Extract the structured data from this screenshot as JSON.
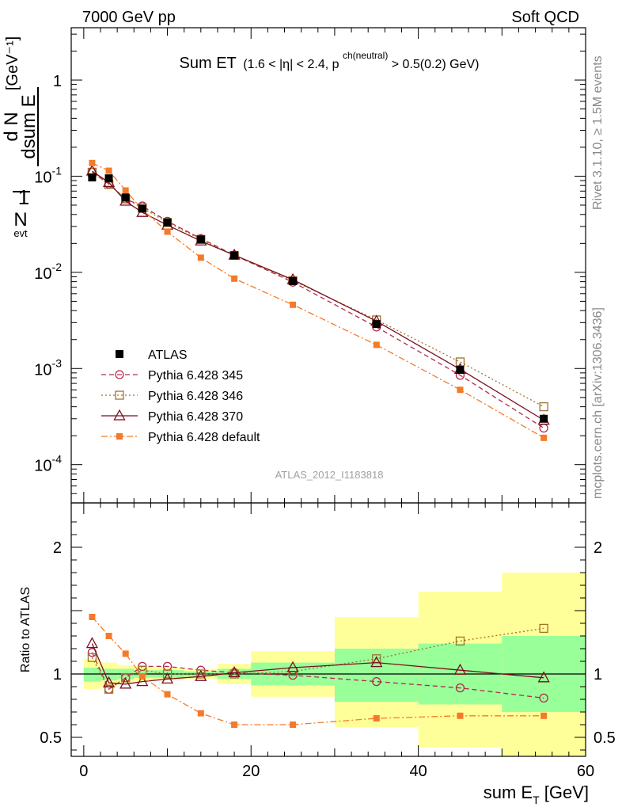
{
  "header": {
    "left": "7000 GeV pp",
    "right": "Soft QCD"
  },
  "side_labels": {
    "rivet": "Rivet 3.1.10, ≥ 1.5M events",
    "mcplots": "mcplots.cern.ch [arXiv:1306.3436]"
  },
  "chart_data": [
    {
      "type": "line",
      "panel": "main",
      "title_main": "Sum ET",
      "title_sub": "(1.6 < |η| < 2.4, p",
      "title_sup": "ch(neutral)",
      "title_end": " > 0.5(0.2) GeV)",
      "analysis_label": "ATLAS_2012_I1183818",
      "ylabel": "1/N_evt dN_evt/dsum E_T [GeV^-1]",
      "yscale": "log",
      "ylim": [
        4e-05,
        3.5
      ],
      "xlim": [
        -1.5,
        60
      ],
      "ytick_labels": [
        "1",
        "10^-1",
        "10^-2",
        "10^-3",
        "10^-4"
      ],
      "legend_position": "lower-left",
      "x": [
        1,
        3,
        5,
        7,
        10,
        14,
        18,
        25,
        35,
        45,
        55
      ],
      "series": [
        {
          "name": "ATLAS",
          "color": "#000000",
          "marker": "filled-square",
          "line": "none",
          "values": [
            0.097,
            0.095,
            0.06,
            0.046,
            0.033,
            0.022,
            0.015,
            0.0081,
            0.0029,
            0.00097,
            0.0003
          ]
        },
        {
          "name": "Pythia 6.428 345",
          "color": "#b2294d",
          "marker": "open-circle",
          "line": "dashed",
          "values": [
            0.11,
            0.083,
            0.058,
            0.049,
            0.034,
            0.0225,
            0.0151,
            0.0079,
            0.0027,
            0.00085,
            0.00024
          ]
        },
        {
          "name": "Pythia 6.428 346",
          "color": "#a0722a",
          "marker": "open-square",
          "line": "dotted",
          "values": [
            0.11,
            0.082,
            0.058,
            0.047,
            0.033,
            0.022,
            0.015,
            0.0082,
            0.0032,
            0.00117,
            0.0004
          ]
        },
        {
          "name": "Pythia 6.428 370",
          "color": "#7a0f1e",
          "marker": "open-triangle",
          "line": "solid",
          "values": [
            0.113,
            0.086,
            0.055,
            0.042,
            0.031,
            0.0212,
            0.0151,
            0.0084,
            0.0031,
            0.00098,
            0.00029
          ]
        },
        {
          "name": "Pythia 6.428 default",
          "color": "#f47a2a",
          "marker": "filled-square-small",
          "line": "dashdot",
          "values": [
            0.137,
            0.114,
            0.071,
            0.045,
            0.0265,
            0.0142,
            0.0086,
            0.0046,
            0.00176,
            0.0006,
            0.00019
          ]
        }
      ]
    },
    {
      "type": "line",
      "panel": "ratio",
      "ylabel": "Ratio to ATLAS",
      "xlabel_main": "sum E",
      "xlabel_sub": "T",
      "xlabel_unit": " [GeV]",
      "ylim": [
        0.35,
        2.35
      ],
      "xlim": [
        -1.5,
        60
      ],
      "xticks": [
        0,
        20,
        40,
        60
      ],
      "yticks": [
        0.5,
        1,
        2
      ],
      "x": [
        1,
        3,
        5,
        7,
        10,
        14,
        18,
        25,
        35,
        45,
        55
      ],
      "bins": [
        [
          0,
          2
        ],
        [
          2,
          4
        ],
        [
          4,
          6
        ],
        [
          6,
          8
        ],
        [
          8,
          12
        ],
        [
          12,
          16
        ],
        [
          16,
          20
        ],
        [
          20,
          30
        ],
        [
          30,
          40
        ],
        [
          40,
          50
        ],
        [
          50,
          60
        ]
      ],
      "band_inner": [
        [
          0.94,
          1.05
        ],
        [
          0.95,
          1.04
        ],
        [
          0.96,
          1.04
        ],
        [
          0.97,
          1.03
        ],
        [
          0.97,
          1.03
        ],
        [
          0.98,
          1.02
        ],
        [
          0.96,
          1.04
        ],
        [
          0.91,
          1.09
        ],
        [
          0.78,
          1.2
        ],
        [
          0.76,
          1.24
        ],
        [
          0.7,
          1.3
        ]
      ],
      "band_outer": [
        [
          0.88,
          1.12
        ],
        [
          0.9,
          1.09
        ],
        [
          0.93,
          1.07
        ],
        [
          0.94,
          1.06
        ],
        [
          0.95,
          1.05
        ],
        [
          0.96,
          1.04
        ],
        [
          0.92,
          1.08
        ],
        [
          0.82,
          1.18
        ],
        [
          0.58,
          1.45
        ],
        [
          0.42,
          1.65
        ],
        [
          0.33,
          1.8
        ]
      ],
      "series": [
        {
          "name": "Pythia 6.428 345",
          "color": "#b2294d",
          "marker": "open-circle",
          "line": "dashed",
          "values": [
            1.17,
            0.88,
            0.97,
            1.06,
            1.06,
            1.03,
            1.01,
            0.99,
            0.94,
            0.89,
            0.81
          ]
        },
        {
          "name": "Pythia 6.428 346",
          "color": "#a0722a",
          "marker": "open-square",
          "line": "dotted",
          "values": [
            1.13,
            0.88,
            0.97,
            1.03,
            1.0,
            1.0,
            1.0,
            1.02,
            1.12,
            1.26,
            1.36
          ]
        },
        {
          "name": "Pythia 6.428 370",
          "color": "#7a0f1e",
          "marker": "open-triangle",
          "line": "solid",
          "values": [
            1.24,
            0.93,
            0.92,
            0.94,
            0.96,
            0.98,
            1.01,
            1.05,
            1.09,
            1.03,
            0.97
          ]
        },
        {
          "name": "Pythia 6.428 default",
          "color": "#f47a2a",
          "marker": "filled-square-small",
          "line": "dashdot",
          "values": [
            1.45,
            1.3,
            1.16,
            0.98,
            0.84,
            0.69,
            0.6,
            0.6,
            0.65,
            0.67,
            0.67
          ]
        }
      ]
    }
  ]
}
